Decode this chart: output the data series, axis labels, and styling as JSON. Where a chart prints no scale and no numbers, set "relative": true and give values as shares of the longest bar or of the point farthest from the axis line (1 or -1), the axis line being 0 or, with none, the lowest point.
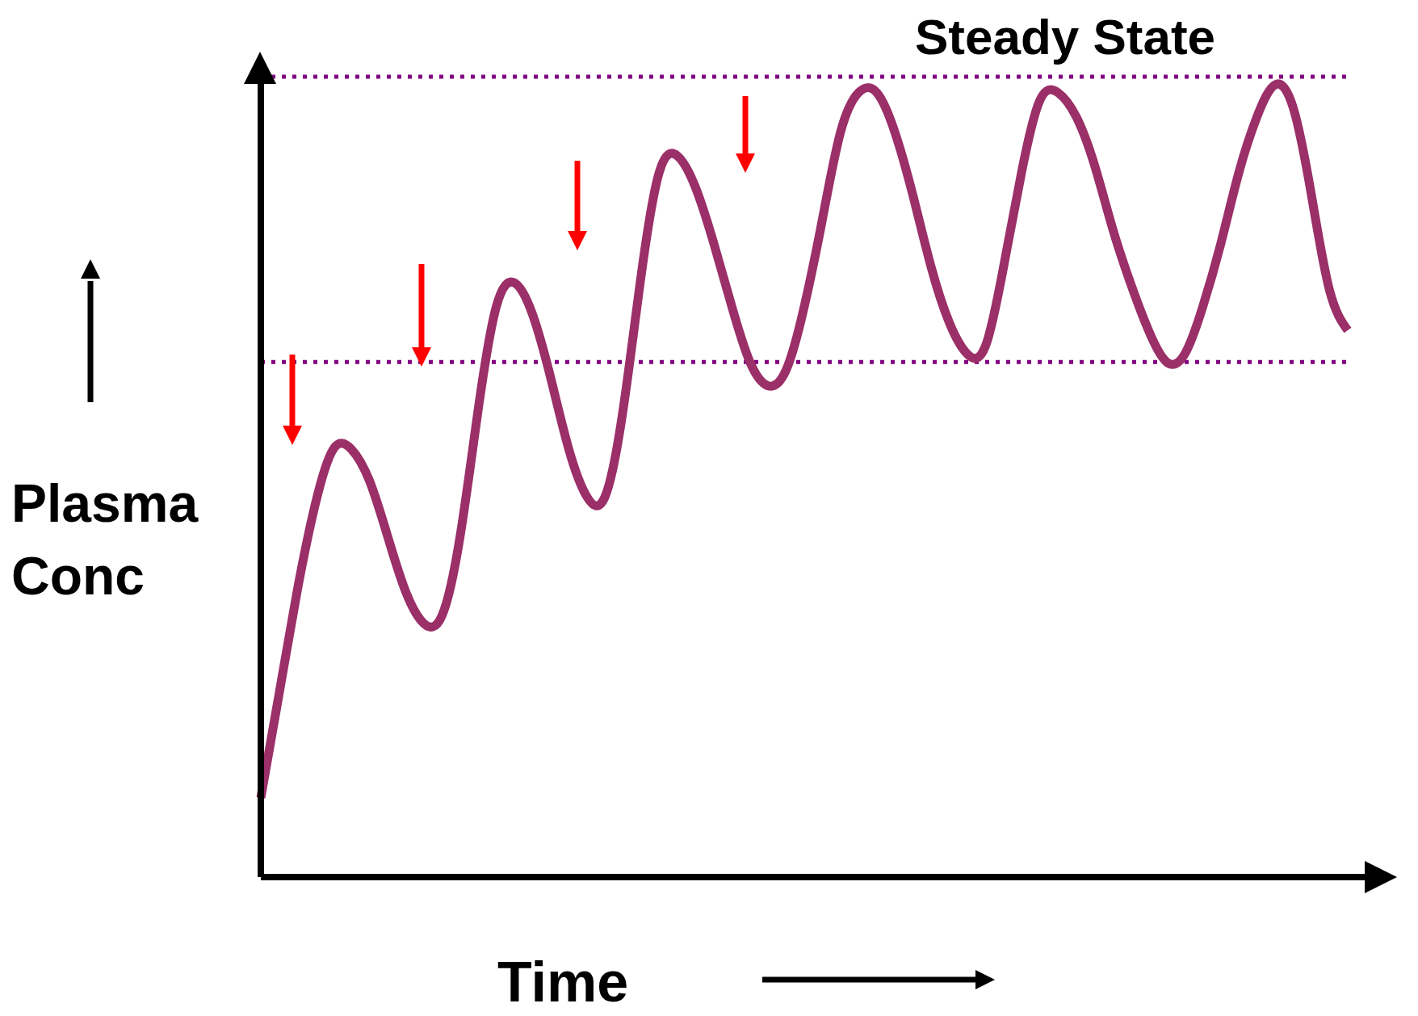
{
  "chart_data": {
    "type": "line",
    "xlabel": "Time",
    "ylabel": "Plasma Conc",
    "relative": true,
    "tick_labels": false,
    "marker": "none",
    "line_style": "solid",
    "categories": [
      null,
      null,
      null,
      null,
      null,
      null,
      null,
      null,
      null,
      null,
      null,
      null,
      null,
      null,
      null,
      null,
      null,
      null,
      null,
      null,
      null,
      null,
      null,
      null,
      null,
      null,
      null,
      null,
      null,
      null,
      null,
      null,
      null,
      null,
      null,
      null,
      null,
      null,
      null,
      null,
      null,
      null,
      null,
      null,
      null,
      null,
      null,
      null,
      null,
      null,
      null,
      null,
      null,
      null,
      null,
      null,
      null,
      null,
      null,
      null,
      null
    ],
    "series": [
      {
        "color": "#9b2f68",
        "values": [
          0.1,
          0.23,
          0.36,
          0.47,
          0.54,
          0.54,
          0.5,
          0.43,
          0.36,
          0.32,
          0.33,
          0.43,
          0.59,
          0.72,
          0.75,
          0.71,
          0.63,
          0.54,
          0.48,
          0.48,
          0.59,
          0.76,
          0.89,
          0.91,
          0.87,
          0.8,
          0.72,
          0.65,
          0.62,
          0.64,
          0.72,
          0.83,
          0.94,
          0.99,
          0.99,
          0.94,
          0.86,
          0.77,
          0.7,
          0.66,
          0.67,
          0.77,
          0.89,
          0.98,
          0.99,
          0.96,
          0.9,
          0.82,
          0.75,
          0.69,
          0.65,
          0.66,
          0.72,
          0.8,
          0.89,
          0.96,
          1.0,
          0.97,
          0.86,
          0.74,
          0.69
        ]
      }
    ],
    "ref_lines": [
      {
        "axis": "y",
        "value": 1.01,
        "label": "Steady State",
        "color": "#800080",
        "line_style": "dotted"
      },
      {
        "axis": "y",
        "value": 0.65,
        "color": "#800080",
        "line_style": "dotted"
      }
    ]
  }
}
